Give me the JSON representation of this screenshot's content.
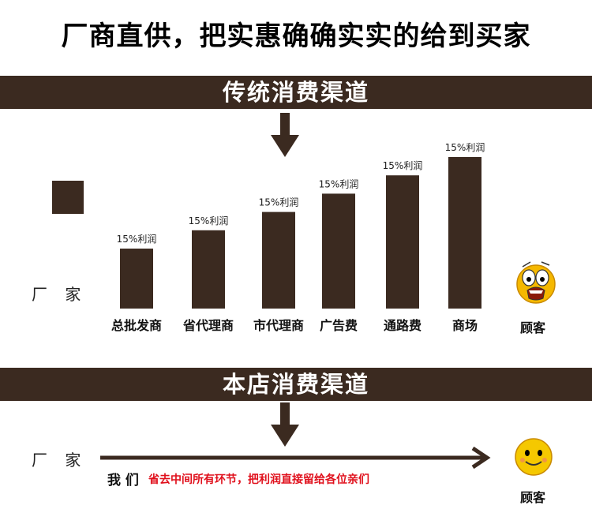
{
  "header": {
    "title": "厂商直供，把实惠确确实实的给到买家"
  },
  "traditional": {
    "band_title": "传统消费渠道",
    "vendor_label": "厂 家",
    "customer_label": "顾客"
  },
  "store": {
    "band_title": "本店消费渠道",
    "vendor_label": "厂 家",
    "we_label": "我 们",
    "slogan": "省去中间所有环节，把利润直接留给各位亲们",
    "customer_label": "顾客"
  },
  "colors": {
    "bar": "#3b2a20",
    "slogan": "#e0101c",
    "band": "#3b2a20"
  },
  "icons": {
    "worried_face": "worried-face-icon",
    "happy_face": "happy-face-icon"
  },
  "chart_data": {
    "type": "bar",
    "categories": [
      "总批发商",
      "省代理商",
      "市代理商",
      "广告费",
      "通路费",
      "商场"
    ],
    "values": [
      1,
      2,
      3,
      4,
      5,
      6
    ],
    "bar_labels": [
      "15%利润",
      "15%利润",
      "15%利润",
      "15%利润",
      "15%利润",
      "15%利润"
    ],
    "title": "",
    "xlabel": "",
    "ylabel": "",
    "ylim": [
      0,
      6
    ],
    "grid": false
  }
}
